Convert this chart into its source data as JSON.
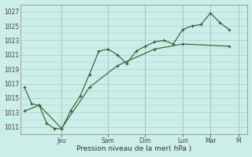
{
  "title": "",
  "xlabel": "Pression niveau de la mer( hPa )",
  "ylabel": "",
  "bg_color": "#cceee8",
  "grid_color": "#aaccc8",
  "line_color": "#2d5a2d",
  "line1_x": [
    0.0,
    0.4,
    0.8,
    1.2,
    1.6,
    2.0,
    2.5,
    3.0,
    3.5,
    4.0,
    4.5,
    5.0,
    5.5,
    6.0,
    6.5,
    7.0,
    7.5,
    8.0,
    8.5,
    9.0,
    9.5,
    10.0,
    10.5,
    11.0
  ],
  "line1_y": [
    1016.5,
    1014.2,
    1014.0,
    1011.5,
    1010.8,
    1010.7,
    1013.3,
    1015.3,
    1018.3,
    1021.5,
    1021.8,
    1021.0,
    1019.8,
    1021.5,
    1022.2,
    1022.8,
    1023.0,
    1022.5,
    1024.5,
    1025.0,
    1025.2,
    1026.8,
    1025.5,
    1024.5
  ],
  "line2_x": [
    0.0,
    0.8,
    2.0,
    3.5,
    5.0,
    7.0,
    8.5,
    11.0
  ],
  "line2_y": [
    1013.2,
    1014.0,
    1010.8,
    1016.5,
    1019.5,
    1021.8,
    1022.5,
    1022.2
  ],
  "xtick_positions": [
    2.0,
    4.5,
    6.5,
    8.5,
    10.0,
    11.5
  ],
  "xtick_labels": [
    "Jeu",
    "Sam",
    "Dim",
    "Lun",
    "Mar",
    "M"
  ],
  "ytick_positions": [
    1011,
    1013,
    1015,
    1017,
    1019,
    1021,
    1023,
    1025,
    1027
  ],
  "ytick_labels": [
    "1011",
    "1013",
    "1015",
    "1017",
    "1019",
    "1021",
    "1023",
    "1025",
    "1027"
  ],
  "ylim": [
    1010.0,
    1028.0
  ],
  "xlim": [
    -0.2,
    12.0
  ],
  "vline_positions": [
    2.0,
    4.5,
    6.5,
    8.5,
    10.0,
    11.5
  ]
}
